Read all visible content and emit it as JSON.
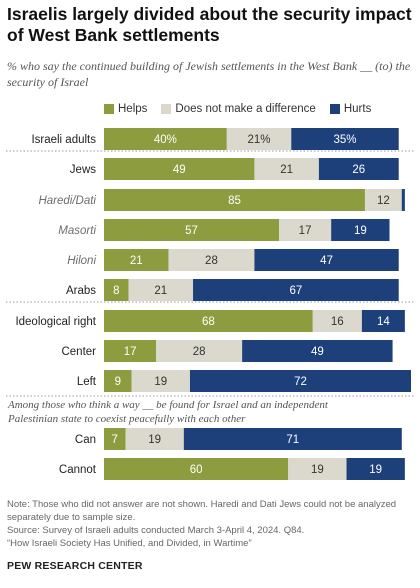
{
  "title": "Israelis largely divided about the security impact of West Bank settlements",
  "subtitle": "% who say the continued building of Jewish settlements in the West Bank __ (to) the security of Israel",
  "colors": {
    "helps": "#8c9c3e",
    "neutral": "#dbd9cd",
    "hurts": "#1d3f7a",
    "separator": "#9a9a9a"
  },
  "chart_data": {
    "type": "bar",
    "stacked": true,
    "orientation": "horizontal",
    "legend_position": "top",
    "series_names": [
      "Helps",
      "Does not make a difference",
      "Hurts"
    ],
    "rows": [
      {
        "label": "Israeli adults",
        "style": "bold",
        "values": [
          40,
          21,
          35
        ],
        "labels": [
          "40%",
          "21%",
          "35%"
        ]
      },
      {
        "label": "Jews",
        "style": "normal",
        "values": [
          49,
          21,
          26
        ],
        "labels": [
          "49",
          "21",
          "26"
        ]
      },
      {
        "label": "Haredi/Dati",
        "style": "italic",
        "values": [
          85,
          12,
          1
        ],
        "labels": [
          "85",
          "12",
          ""
        ]
      },
      {
        "label": "Masorti",
        "style": "italic",
        "values": [
          57,
          17,
          19
        ],
        "labels": [
          "57",
          "17",
          "19"
        ]
      },
      {
        "label": "Hiloni",
        "style": "italic",
        "values": [
          21,
          28,
          47
        ],
        "labels": [
          "21",
          "28",
          "47"
        ]
      },
      {
        "label": "Arabs",
        "style": "normal",
        "values": [
          8,
          21,
          67
        ],
        "labels": [
          "8",
          "21",
          "67"
        ]
      },
      {
        "label": "Ideological right",
        "style": "normal",
        "values": [
          68,
          16,
          14
        ],
        "labels": [
          "68",
          "16",
          "14"
        ]
      },
      {
        "label": "Center",
        "style": "normal",
        "values": [
          17,
          28,
          49
        ],
        "labels": [
          "17",
          "28",
          "49"
        ]
      },
      {
        "label": "Left",
        "style": "normal",
        "values": [
          9,
          19,
          72
        ],
        "labels": [
          "9",
          "19",
          "72"
        ]
      },
      {
        "label": "Can",
        "style": "normal",
        "values": [
          7,
          19,
          71
        ],
        "labels": [
          "7",
          "19",
          "71"
        ]
      },
      {
        "label": "Cannot",
        "style": "normal",
        "values": [
          60,
          19,
          19
        ],
        "labels": [
          "60",
          "19",
          "19"
        ]
      }
    ],
    "group_subheading": "Among those who think a way __ be found for Israel and an independent Palestinian state to coexist peacefully with each other"
  },
  "notes": {
    "note": "Note: Those who did not answer are not shown. Haredi and Dati Jews could not be analyzed separately due to sample size.",
    "source": "Source: Survey of Israeli adults conducted March 3-April 4, 2024. Q84.",
    "report": "“How Israeli Society Has Unified, and Divided, in Wartime”"
  },
  "brand": "PEW RESEARCH CENTER"
}
